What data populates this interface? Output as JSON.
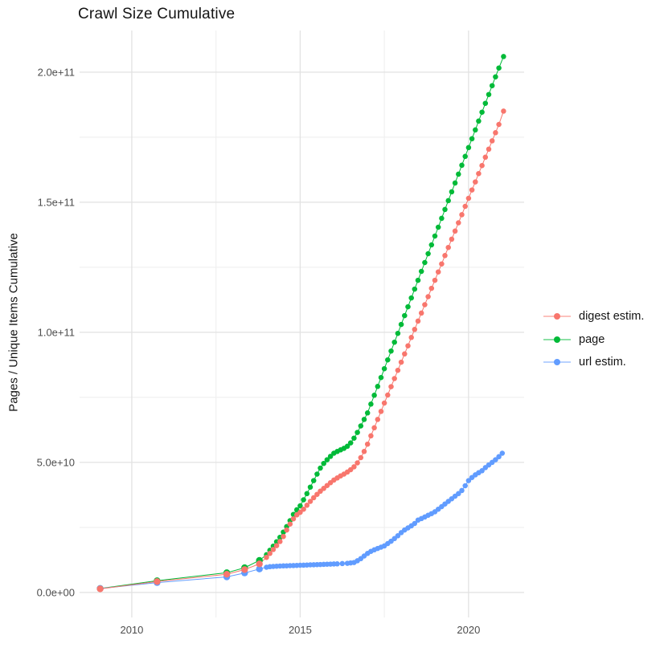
{
  "title": "Crawl Size Cumulative",
  "y_axis_title": "Pages / Unique Items Cumulative",
  "chart_data": {
    "type": "scatter",
    "title": "Crawl Size Cumulative",
    "xlabel": "",
    "ylabel": "Pages / Unique Items Cumulative",
    "grid": true,
    "legend_position": "right-middle",
    "x_unit": "year",
    "value_unit_note": "point values stored in billions (1e9)",
    "xlim": [
      2008.45,
      2021.65
    ],
    "ylim_e9": [
      -9.6,
      216
    ],
    "x_major_ticks": [
      {
        "value": 2010,
        "label": "2010"
      },
      {
        "value": 2015,
        "label": "2015"
      },
      {
        "value": 2020,
        "label": "2020"
      }
    ],
    "x_minor_ticks": [
      2012.5,
      2017.5
    ],
    "y_major_ticks": [
      {
        "value_e9": 0,
        "label": "0.0e+00"
      },
      {
        "value_e9": 50,
        "label": "5.0e+10"
      },
      {
        "value_e9": 100,
        "label": "1.0e+11"
      },
      {
        "value_e9": 150,
        "label": "1.5e+11"
      },
      {
        "value_e9": 200,
        "label": "2.0e+11"
      }
    ],
    "y_minor_ticks_e9": [
      25,
      75,
      125,
      175
    ],
    "colors": {
      "digest": "#F8766D",
      "page": "#00BA38",
      "url": "#619CFF"
    },
    "grid_major_color": "#e2e2e2",
    "grid_minor_color": "#f0f0f0",
    "series": [
      {
        "name": "digest estim.",
        "color": "#F8766D",
        "points": [
          [
            2009.06,
            1.4
          ],
          [
            2010.75,
            4.2
          ],
          [
            2012.82,
            7.0
          ],
          [
            2013.35,
            8.8
          ],
          [
            2013.79,
            11.0
          ],
          [
            2014.0,
            13.5
          ],
          [
            2014.1,
            15.0
          ],
          [
            2014.2,
            16.5
          ],
          [
            2014.3,
            18.0
          ],
          [
            2014.4,
            19.6
          ],
          [
            2014.5,
            21.5
          ],
          [
            2014.6,
            24.0
          ],
          [
            2014.7,
            26.3
          ],
          [
            2014.8,
            28.3
          ],
          [
            2014.9,
            29.8
          ],
          [
            2015.0,
            30.8
          ],
          [
            2015.1,
            32.0
          ],
          [
            2015.2,
            33.5
          ],
          [
            2015.3,
            35.0
          ],
          [
            2015.4,
            36.4
          ],
          [
            2015.5,
            37.7
          ],
          [
            2015.6,
            38.9
          ],
          [
            2015.7,
            40.0
          ],
          [
            2015.8,
            41.1
          ],
          [
            2015.9,
            42.2
          ],
          [
            2016.0,
            43.2
          ],
          [
            2016.1,
            44.0
          ],
          [
            2016.2,
            44.8
          ],
          [
            2016.3,
            45.5
          ],
          [
            2016.4,
            46.3
          ],
          [
            2016.5,
            47.2
          ],
          [
            2016.6,
            48.3
          ],
          [
            2016.7,
            49.8
          ],
          [
            2016.8,
            51.8
          ],
          [
            2016.9,
            54.2
          ],
          [
            2017.0,
            57.0
          ],
          [
            2017.1,
            60.2
          ],
          [
            2017.2,
            63.3
          ],
          [
            2017.3,
            66.5
          ],
          [
            2017.4,
            69.6
          ],
          [
            2017.5,
            72.8
          ],
          [
            2017.6,
            75.9
          ],
          [
            2017.7,
            79.1
          ],
          [
            2017.8,
            82.2
          ],
          [
            2017.9,
            85.4
          ],
          [
            2018.0,
            88.5
          ],
          [
            2018.1,
            91.7
          ],
          [
            2018.2,
            94.8
          ],
          [
            2018.3,
            98.0
          ],
          [
            2018.4,
            101.1
          ],
          [
            2018.5,
            104.3
          ],
          [
            2018.6,
            107.4
          ],
          [
            2018.7,
            110.6
          ],
          [
            2018.8,
            113.7
          ],
          [
            2018.9,
            116.9
          ],
          [
            2019.0,
            120.0
          ],
          [
            2019.1,
            123.2
          ],
          [
            2019.2,
            126.3
          ],
          [
            2019.3,
            129.5
          ],
          [
            2019.4,
            132.6
          ],
          [
            2019.5,
            135.8
          ],
          [
            2019.6,
            138.9
          ],
          [
            2019.7,
            142.1
          ],
          [
            2019.8,
            145.2
          ],
          [
            2019.9,
            148.4
          ],
          [
            2020.0,
            151.5
          ],
          [
            2020.1,
            154.7
          ],
          [
            2020.2,
            157.8
          ],
          [
            2020.3,
            161.0
          ],
          [
            2020.4,
            164.1
          ],
          [
            2020.5,
            167.3
          ],
          [
            2020.6,
            170.4
          ],
          [
            2020.7,
            173.6
          ],
          [
            2020.8,
            176.7
          ],
          [
            2020.9,
            179.9
          ],
          [
            2021.04,
            185.0
          ]
        ]
      },
      {
        "name": "page",
        "color": "#00BA38",
        "points": [
          [
            2009.06,
            1.5
          ],
          [
            2010.75,
            4.5
          ],
          [
            2012.82,
            7.6
          ],
          [
            2013.35,
            9.5
          ],
          [
            2013.79,
            12.3
          ],
          [
            2014.0,
            14.5
          ],
          [
            2014.1,
            16.2
          ],
          [
            2014.2,
            17.8
          ],
          [
            2014.3,
            19.5
          ],
          [
            2014.4,
            21.2
          ],
          [
            2014.5,
            23.2
          ],
          [
            2014.6,
            25.3
          ],
          [
            2014.7,
            27.6
          ],
          [
            2014.8,
            30.0
          ],
          [
            2014.9,
            31.8
          ],
          [
            2015.0,
            33.3
          ],
          [
            2015.1,
            35.6
          ],
          [
            2015.2,
            38.0
          ],
          [
            2015.3,
            40.5
          ],
          [
            2015.4,
            43.0
          ],
          [
            2015.5,
            45.5
          ],
          [
            2015.6,
            47.8
          ],
          [
            2015.7,
            49.6
          ],
          [
            2015.8,
            51.0
          ],
          [
            2015.9,
            52.3
          ],
          [
            2016.0,
            53.5
          ],
          [
            2016.1,
            54.2
          ],
          [
            2016.2,
            54.8
          ],
          [
            2016.3,
            55.4
          ],
          [
            2016.4,
            56.2
          ],
          [
            2016.5,
            57.5
          ],
          [
            2016.6,
            59.3
          ],
          [
            2016.7,
            61.5
          ],
          [
            2016.8,
            64.0
          ],
          [
            2016.9,
            66.5
          ],
          [
            2017.0,
            69.0
          ],
          [
            2017.1,
            72.4
          ],
          [
            2017.2,
            75.8
          ],
          [
            2017.3,
            79.2
          ],
          [
            2017.4,
            82.6
          ],
          [
            2017.5,
            86.0
          ],
          [
            2017.6,
            89.4
          ],
          [
            2017.7,
            92.8
          ],
          [
            2017.8,
            96.2
          ],
          [
            2017.9,
            99.6
          ],
          [
            2018.0,
            103.0
          ],
          [
            2018.1,
            106.4
          ],
          [
            2018.2,
            109.8
          ],
          [
            2018.3,
            113.2
          ],
          [
            2018.4,
            116.6
          ],
          [
            2018.5,
            120.0
          ],
          [
            2018.6,
            123.4
          ],
          [
            2018.7,
            126.8
          ],
          [
            2018.8,
            130.2
          ],
          [
            2018.9,
            133.6
          ],
          [
            2019.0,
            137.0
          ],
          [
            2019.1,
            140.4
          ],
          [
            2019.2,
            143.8
          ],
          [
            2019.3,
            147.2
          ],
          [
            2019.4,
            150.6
          ],
          [
            2019.5,
            154.0
          ],
          [
            2019.6,
            157.4
          ],
          [
            2019.7,
            160.8
          ],
          [
            2019.8,
            164.2
          ],
          [
            2019.9,
            167.6
          ],
          [
            2020.0,
            171.0
          ],
          [
            2020.1,
            174.4
          ],
          [
            2020.2,
            177.8
          ],
          [
            2020.3,
            181.2
          ],
          [
            2020.4,
            184.6
          ],
          [
            2020.5,
            188.0
          ],
          [
            2020.6,
            191.4
          ],
          [
            2020.7,
            194.8
          ],
          [
            2020.8,
            198.2
          ],
          [
            2020.9,
            201.6
          ],
          [
            2021.04,
            206.0
          ]
        ]
      },
      {
        "name": "url estim.",
        "color": "#619CFF",
        "points": [
          [
            2009.06,
            1.5
          ],
          [
            2010.75,
            3.8
          ],
          [
            2012.82,
            6.0
          ],
          [
            2013.35,
            7.5
          ],
          [
            2013.79,
            9.0
          ],
          [
            2014.0,
            9.7
          ],
          [
            2014.1,
            9.9
          ],
          [
            2014.2,
            10.0
          ],
          [
            2014.3,
            10.1
          ],
          [
            2014.4,
            10.15
          ],
          [
            2014.5,
            10.2
          ],
          [
            2014.6,
            10.25
          ],
          [
            2014.7,
            10.3
          ],
          [
            2014.8,
            10.35
          ],
          [
            2014.9,
            10.4
          ],
          [
            2015.0,
            10.45
          ],
          [
            2015.1,
            10.5
          ],
          [
            2015.2,
            10.55
          ],
          [
            2015.3,
            10.6
          ],
          [
            2015.4,
            10.65
          ],
          [
            2015.5,
            10.7
          ],
          [
            2015.6,
            10.75
          ],
          [
            2015.7,
            10.8
          ],
          [
            2015.8,
            10.85
          ],
          [
            2015.9,
            10.9
          ],
          [
            2016.0,
            10.95
          ],
          [
            2016.1,
            11.0
          ],
          [
            2016.25,
            11.1
          ],
          [
            2016.4,
            11.2
          ],
          [
            2016.5,
            11.35
          ],
          [
            2016.6,
            11.5
          ],
          [
            2016.7,
            12.2
          ],
          [
            2016.8,
            13.0
          ],
          [
            2016.9,
            14.0
          ],
          [
            2017.0,
            15.0
          ],
          [
            2017.1,
            15.8
          ],
          [
            2017.2,
            16.4
          ],
          [
            2017.3,
            16.9
          ],
          [
            2017.4,
            17.4
          ],
          [
            2017.5,
            17.9
          ],
          [
            2017.6,
            18.8
          ],
          [
            2017.7,
            19.7
          ],
          [
            2017.8,
            20.7
          ],
          [
            2017.9,
            21.8
          ],
          [
            2018.0,
            23.0
          ],
          [
            2018.1,
            24.0
          ],
          [
            2018.2,
            24.8
          ],
          [
            2018.3,
            25.6
          ],
          [
            2018.4,
            26.5
          ],
          [
            2018.5,
            27.8
          ],
          [
            2018.6,
            28.4
          ],
          [
            2018.7,
            29.0
          ],
          [
            2018.8,
            29.7
          ],
          [
            2018.9,
            30.3
          ],
          [
            2019.0,
            31.0
          ],
          [
            2019.1,
            32.0
          ],
          [
            2019.2,
            33.0
          ],
          [
            2019.3,
            34.0
          ],
          [
            2019.4,
            35.0
          ],
          [
            2019.5,
            36.0
          ],
          [
            2019.6,
            37.0
          ],
          [
            2019.7,
            38.0
          ],
          [
            2019.8,
            39.2
          ],
          [
            2019.9,
            41.0
          ],
          [
            2020.0,
            43.0
          ],
          [
            2020.1,
            44.2
          ],
          [
            2020.2,
            45.2
          ],
          [
            2020.3,
            46.0
          ],
          [
            2020.4,
            46.8
          ],
          [
            2020.5,
            48.0
          ],
          [
            2020.6,
            49.0
          ],
          [
            2020.7,
            50.0
          ],
          [
            2020.8,
            51.0
          ],
          [
            2020.9,
            52.2
          ],
          [
            2021.0,
            53.5
          ]
        ]
      }
    ],
    "draw_order": [
      1,
      2,
      0
    ],
    "legend_order": [
      0,
      1,
      2
    ]
  }
}
